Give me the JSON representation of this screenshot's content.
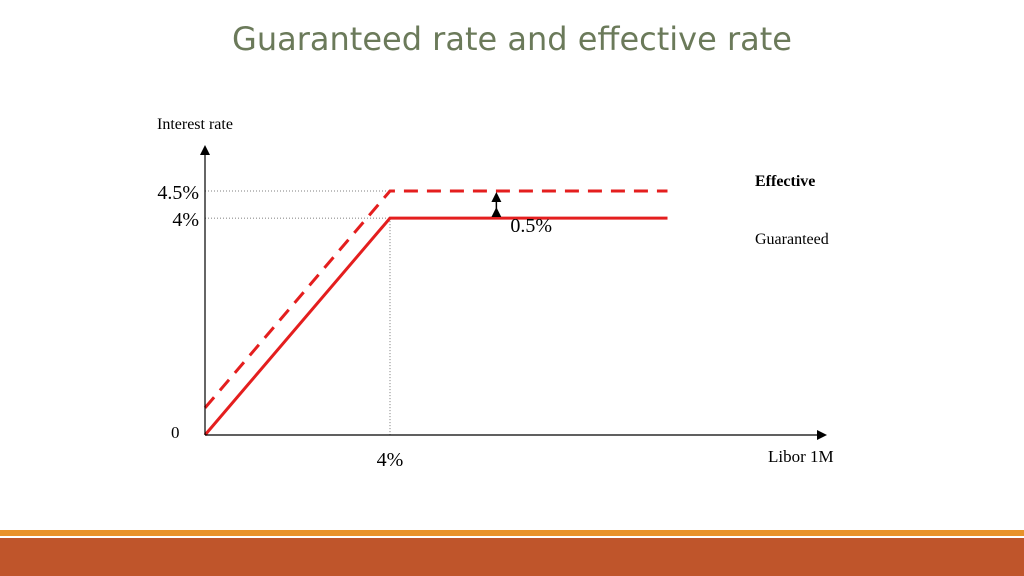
{
  "slide": {
    "title": "Guaranteed rate and effective rate"
  },
  "colors": {
    "series": "#e41e1e",
    "title": "#6b7a5a",
    "footer_line": "#e8922a",
    "footer_band": "#bf552b"
  },
  "chart_data": {
    "type": "line",
    "title": "Guaranteed rate and effective rate",
    "ylabel": "Interest rate",
    "xlabel": "Libor 1M",
    "origin_label": "0",
    "xlim": [
      0,
      10
    ],
    "ylim": [
      0,
      4.5
    ],
    "x_ticks": [
      {
        "value": 4,
        "label": "4%"
      }
    ],
    "y_ticks": [
      {
        "value": 4.5,
        "label": "4.5%"
      },
      {
        "value": 4,
        "label": "4%"
      }
    ],
    "series": [
      {
        "name": "Effective",
        "style": "dashed",
        "x": [
          0,
          4,
          10
        ],
        "y": [
          0.5,
          4.5,
          4.5
        ]
      },
      {
        "name": "Guaranteed",
        "style": "solid",
        "x": [
          0,
          4,
          10
        ],
        "y": [
          0,
          4,
          4
        ]
      }
    ],
    "annotation": {
      "label": "0.5%",
      "x": 6.3,
      "y_from": 4,
      "y_to": 4.5
    }
  }
}
